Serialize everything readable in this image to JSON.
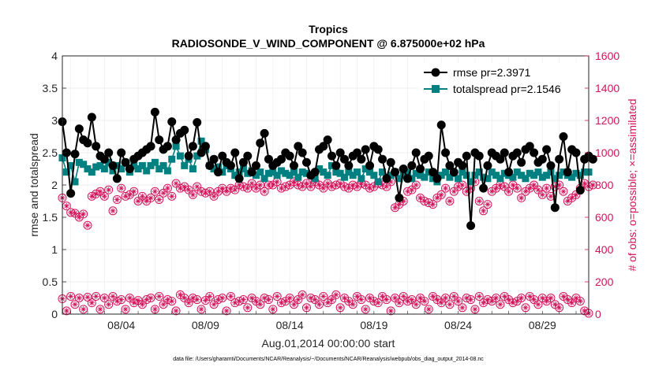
{
  "chart_data": {
    "type": "line",
    "title": "Tropics",
    "subtitle": "RADIOSONDE_V_WIND_COMPONENT @ 6.875000e+02 hPa",
    "xlabel": "Aug.01,2014 00:00:00 start",
    "ylabel": "rmse and totalspread",
    "ylabel_right": "# of obs: o=possible; ×=assimilated",
    "ylim": [
      0,
      4
    ],
    "ylim_right": [
      0,
      1600
    ],
    "xlim": [
      0.5,
      31.75
    ],
    "yticks": [
      "0",
      "0.5",
      "1",
      "1.5",
      "2",
      "2.5",
      "3",
      "3.5",
      "4"
    ],
    "yticks_right": [
      "0",
      "200",
      "400",
      "600",
      "800",
      "1000",
      "1200",
      "1400",
      "1600"
    ],
    "xtick_labels": [
      "08/04",
      "08/09",
      "08/14",
      "08/19",
      "08/24",
      "08/29"
    ],
    "xtick_days": [
      4,
      9,
      14,
      19,
      24,
      29
    ],
    "grid": true,
    "legend_position": "top-right",
    "footnote": "data file: /Users/gharamti/Documents/NCAR/Reanalysis/~/Documents/NCAR/Reanalysis/webpub/obs_diag_output_2014-08.nc",
    "time_step_days": 0.25,
    "start_day": 0.5,
    "series": [
      {
        "name": "rmse",
        "legend_label": "rmse pr=2.3971",
        "color": "#000000",
        "marker": "circle",
        "axis": "left",
        "values": [
          2.98,
          2.5,
          1.87,
          2.48,
          2.87,
          2.7,
          2.65,
          3.05,
          2.6,
          2.45,
          2.4,
          2.5,
          2.3,
          2.1,
          2.5,
          2.35,
          2.25,
          2.4,
          2.45,
          2.5,
          2.55,
          2.6,
          3.13,
          2.7,
          2.55,
          2.6,
          2.98,
          2.7,
          2.8,
          2.85,
          2.45,
          2.6,
          2.97,
          2.5,
          2.6,
          2.3,
          2.4,
          2.2,
          2.45,
          2.35,
          2.3,
          2.5,
          2.1,
          2.35,
          2.45,
          2.2,
          2.3,
          2.65,
          2.8,
          2.4,
          2.3,
          2.35,
          2.4,
          2.5,
          2.45,
          2.3,
          2.6,
          2.5,
          2.35,
          2.15,
          2.2,
          2.55,
          2.6,
          2.7,
          2.45,
          2.3,
          2.5,
          2.4,
          2.3,
          2.45,
          2.5,
          2.4,
          2.55,
          2.3,
          2.6,
          2.55,
          2.4,
          2.1,
          2.35,
          2.2,
          1.8,
          2.25,
          2.1,
          2.3,
          2.5,
          2.25,
          2.4,
          2.45,
          2.2,
          2.1,
          2.93,
          2.5,
          2.3,
          2.2,
          2.35,
          2.3,
          2.45,
          1.37,
          2.5,
          2.45,
          1.95,
          2.3,
          2.5,
          2.45,
          2.4,
          2.5,
          2.2,
          2.45,
          2.5,
          2.35,
          2.55,
          2.6,
          2.5,
          2.35,
          2.4,
          2.55,
          2.3,
          1.65,
          2.4,
          2.75,
          2.2,
          2.55,
          2.5,
          1.92,
          2.4,
          2.45,
          2.4
        ],
        "legend_label_text": "rmse pr=2.3971"
      },
      {
        "name": "totalspread",
        "legend_label": "totalspread pr=2.1546",
        "color": "#008080",
        "marker": "square",
        "axis": "left",
        "values": [
          2.42,
          2.2,
          2.3,
          2.05,
          2.35,
          2.32,
          2.25,
          2.2,
          2.28,
          2.3,
          2.25,
          2.35,
          2.22,
          2.3,
          2.25,
          2.35,
          2.2,
          2.3,
          2.25,
          2.3,
          2.22,
          2.3,
          2.35,
          2.25,
          2.3,
          2.22,
          2.4,
          2.6,
          2.45,
          2.3,
          2.4,
          2.25,
          2.45,
          2.68,
          2.55,
          2.3,
          2.25,
          2.28,
          2.2,
          2.3,
          2.25,
          2.15,
          2.2,
          2.25,
          2.18,
          2.22,
          2.15,
          2.2,
          2.1,
          2.18,
          2.2,
          2.15,
          2.22,
          2.18,
          2.15,
          2.2,
          2.12,
          2.2,
          2.18,
          2.15,
          2.1,
          2.25,
          2.2,
          2.15,
          2.3,
          2.2,
          2.18,
          2.12,
          2.2,
          2.15,
          2.2,
          2.1,
          2.25,
          2.2,
          2.15,
          2.05,
          2.2,
          2.12,
          2.15,
          2.2,
          2.1,
          2.15,
          2.2,
          2.1,
          2.18,
          2.15,
          2.12,
          2.2,
          2.1,
          2.05,
          2.15,
          2.2,
          2.12,
          2.18,
          2.1,
          2.2,
          2.15,
          2.05,
          2.15,
          2.2,
          2.12,
          2.1,
          2.2,
          2.15,
          2.1,
          2.18,
          2.15,
          2.12,
          2.2,
          2.15,
          2.1,
          2.18,
          2.15,
          2.2,
          2.12,
          2.15,
          2.2,
          2.1,
          2.15,
          2.2,
          2.15,
          2.12,
          2.18,
          2.15,
          2.2,
          2.2
        ],
        "legend_label_text": "totalspread pr=2.1546"
      },
      {
        "name": "obs possible (upper)",
        "color": "#d4145a",
        "marker": "circle-open",
        "axis": "right",
        "values": [
          720,
          670,
          630,
          625,
          600,
          620,
          550,
          730,
          745,
          760,
          730,
          770,
          640,
          710,
          780,
          730,
          740,
          760,
          700,
          730,
          700,
          720,
          760,
          710,
          750,
          780,
          730,
          810,
          780,
          790,
          770,
          740,
          790,
          760,
          750,
          760,
          730,
          760,
          780,
          760,
          780,
          770,
          800,
          790,
          780,
          810,
          780,
          800,
          760,
          800,
          800,
          820,
          780,
          790,
          800,
          820,
          800,
          790,
          810,
          790,
          820,
          800,
          780,
          810,
          790,
          800,
          810,
          790,
          780,
          800,
          790,
          810,
          800,
          780,
          790,
          810,
          800,
          790,
          820,
          660,
          680,
          700,
          760,
          770,
          800,
          720,
          700,
          690,
          680,
          720,
          740,
          780,
          700,
          760,
          790,
          800,
          760,
          780,
          820,
          700,
          640,
          680,
          760,
          780,
          800,
          790,
          760,
          800,
          780,
          720,
          760,
          780,
          800,
          770,
          740,
          780,
          730,
          790,
          800,
          760,
          700,
          720,
          740,
          780,
          810,
          790,
          800
        ],
        "legend_label_text": ""
      },
      {
        "name": "obs possible (lower)",
        "color": "#d4145a",
        "marker": "circle-open",
        "axis": "right",
        "values": [
          95,
          20,
          110,
          60,
          100,
          30,
          105,
          70,
          110,
          30,
          100,
          60,
          110,
          80,
          90,
          30,
          100,
          70,
          85,
          60,
          90,
          100,
          30,
          110,
          60,
          90,
          80,
          20,
          120,
          100,
          70,
          100,
          90,
          30,
          85,
          110,
          60,
          90,
          100,
          20,
          110,
          70,
          80,
          90,
          40,
          100,
          80,
          60,
          100,
          90,
          30,
          110,
          70,
          80,
          100,
          60,
          90,
          120,
          40,
          100,
          90,
          60,
          110,
          70,
          90,
          120,
          40,
          100,
          80,
          60,
          110,
          90,
          30,
          100,
          80,
          70,
          110,
          90,
          20,
          100,
          70,
          110,
          80,
          90,
          60,
          100,
          80,
          30,
          110,
          90,
          70,
          100,
          60,
          110,
          80,
          40,
          100,
          90,
          30,
          110,
          70,
          90,
          80,
          100,
          60,
          110,
          90,
          70,
          80,
          100,
          40,
          110,
          90,
          60,
          100,
          80,
          100,
          60,
          40,
          110,
          90,
          70,
          100,
          80,
          20,
          5
        ],
        "legend_label_text": ""
      }
    ]
  }
}
